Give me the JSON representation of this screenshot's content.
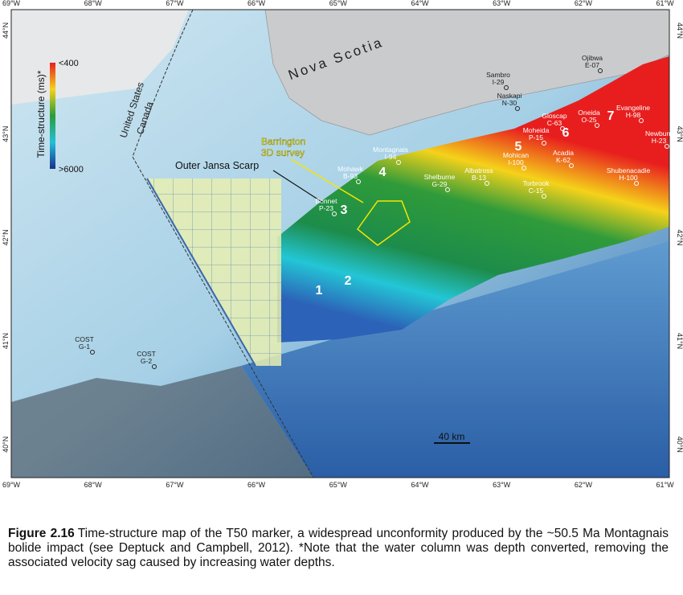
{
  "map": {
    "lon_labels": [
      "69°W",
      "68°W",
      "67°W",
      "66°W",
      "65°W",
      "64°W",
      "63°W",
      "62°W",
      "61°W"
    ],
    "lat_labels": [
      "44°N",
      "43°N",
      "42°N",
      "41°N",
      "40°N"
    ],
    "land_label": "Nova Scotia",
    "border_labels": [
      "United States",
      "Canada"
    ],
    "legend": {
      "title": "Time-structure (ms)*",
      "top": "<400",
      "bottom": ">6000"
    },
    "annotations": {
      "survey": [
        "Barrington",
        "3D survey"
      ],
      "scarp": "Outer Jansa Scarp",
      "scale": "40 km"
    },
    "zones": [
      "1",
      "2",
      "3",
      "4",
      "5",
      "6",
      "7"
    ],
    "wells": [
      {
        "name": "Sambro",
        "id": "I-29"
      },
      {
        "name": "Naskapi",
        "id": "N-30"
      },
      {
        "name": "Ojibwa",
        "id": "E-07"
      },
      {
        "name": "Gloscap",
        "id": "C-63"
      },
      {
        "name": "Oneida",
        "id": "O-25"
      },
      {
        "name": "Evangeline",
        "id": "H-98"
      },
      {
        "name": "Moheida",
        "id": "P-15"
      },
      {
        "name": "Newburn",
        "id": "H-23"
      },
      {
        "name": "Mohican",
        "id": "I-100"
      },
      {
        "name": "Acadia",
        "id": "K-62"
      },
      {
        "name": "Montagnais",
        "id": "I-94"
      },
      {
        "name": "Mohawk",
        "id": "B-93"
      },
      {
        "name": "Shelburne",
        "id": "G-29"
      },
      {
        "name": "Albatross",
        "id": "B-13"
      },
      {
        "name": "Torbrook",
        "id": "C-15"
      },
      {
        "name": "Shubenacadie",
        "id": "H-100"
      },
      {
        "name": "Bonnet",
        "id": "P-23"
      },
      {
        "name": "COST",
        "id": "G-1"
      },
      {
        "name": "COST",
        "id": "G-2"
      }
    ]
  },
  "caption": {
    "label": "Figure 2.16",
    "text": "Time-structure map of the T50 marker, a widespread unconformity produced by the ~50.5 Ma Montagnais bolide impact (see Deptuck and Campbell, 2012).  *Note that the water column was depth converted, removing the associated velocity sag caused by increasing water depths."
  }
}
